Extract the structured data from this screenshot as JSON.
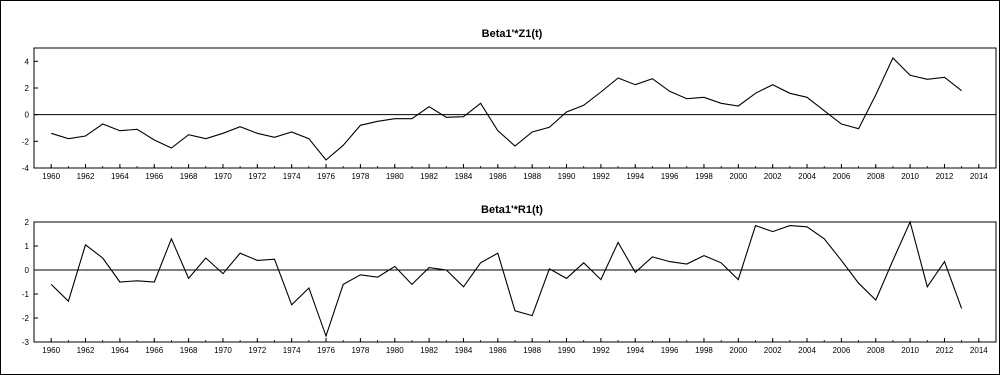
{
  "chart_data": [
    {
      "type": "line",
      "title": "Beta1'*Z1(t)",
      "xlabel": "",
      "ylabel": "",
      "ylim": [
        -4,
        5
      ],
      "yticks": [
        -4,
        -2,
        0,
        2,
        4
      ],
      "xticks": [
        1960,
        1962,
        1964,
        1966,
        1968,
        1970,
        1972,
        1974,
        1976,
        1978,
        1980,
        1982,
        1984,
        1986,
        1988,
        1990,
        1992,
        1994,
        1996,
        1998,
        2000,
        2002,
        2004,
        2006,
        2008,
        2010,
        2012,
        2014
      ],
      "xlim": [
        1959,
        2015
      ],
      "zero_line": true,
      "grid": false,
      "x": [
        1960,
        1961,
        1962,
        1963,
        1964,
        1965,
        1966,
        1967,
        1968,
        1969,
        1970,
        1971,
        1972,
        1973,
        1974,
        1975,
        1976,
        1977,
        1978,
        1979,
        1980,
        1981,
        1982,
        1983,
        1984,
        1985,
        1986,
        1987,
        1988,
        1989,
        1990,
        1991,
        1992,
        1993,
        1994,
        1995,
        1996,
        1997,
        1998,
        1999,
        2000,
        2001,
        2002,
        2003,
        2004,
        2005,
        2006,
        2007,
        2008,
        2009,
        2010,
        2011,
        2012,
        2013
      ],
      "values": [
        -1.4,
        -1.8,
        -1.6,
        -0.7,
        -1.2,
        -1.1,
        -1.9,
        -2.5,
        -1.5,
        -1.8,
        -1.4,
        -0.9,
        -1.4,
        -1.7,
        -1.3,
        -1.8,
        -3.4,
        -2.3,
        -0.8,
        -0.5,
        -0.3,
        -0.3,
        0.6,
        -0.2,
        -0.15,
        0.85,
        -1.2,
        -2.35,
        -1.3,
        -0.95,
        0.2,
        0.7,
        1.7,
        2.75,
        2.25,
        2.7,
        1.75,
        1.2,
        1.3,
        0.85,
        0.65,
        1.6,
        2.25,
        1.6,
        1.3,
        0.3,
        -0.7,
        -1.05,
        1.5,
        4.25,
        2.95,
        2.65,
        2.8,
        1.8
      ]
    },
    {
      "type": "line",
      "title": "Beta1'*R1(t)",
      "xlabel": "",
      "ylabel": "",
      "ylim": [
        -3,
        2
      ],
      "yticks": [
        -3,
        -2,
        -1,
        0,
        1,
        2
      ],
      "xticks": [
        1960,
        1962,
        1964,
        1966,
        1968,
        1970,
        1972,
        1974,
        1976,
        1978,
        1980,
        1982,
        1984,
        1986,
        1988,
        1990,
        1992,
        1994,
        1996,
        1998,
        2000,
        2002,
        2004,
        2006,
        2008,
        2010,
        2012,
        2014
      ],
      "xlim": [
        1959,
        2015
      ],
      "zero_line": true,
      "grid": false,
      "x": [
        1960,
        1961,
        1962,
        1963,
        1964,
        1965,
        1966,
        1967,
        1968,
        1969,
        1970,
        1971,
        1972,
        1973,
        1974,
        1975,
        1976,
        1977,
        1978,
        1979,
        1980,
        1981,
        1982,
        1983,
        1984,
        1985,
        1986,
        1987,
        1988,
        1989,
        1990,
        1991,
        1992,
        1993,
        1994,
        1995,
        1996,
        1997,
        1998,
        1999,
        2000,
        2001,
        2002,
        2003,
        2004,
        2005,
        2006,
        2007,
        2008,
        2009,
        2010,
        2011,
        2012,
        2013
      ],
      "values": [
        -0.6,
        -1.3,
        1.05,
        0.5,
        -0.5,
        -0.45,
        -0.5,
        1.3,
        -0.35,
        0.5,
        -0.15,
        0.7,
        0.4,
        0.45,
        -1.45,
        -0.75,
        -2.75,
        -0.6,
        -0.2,
        -0.3,
        0.15,
        -0.6,
        0.1,
        0.0,
        -0.7,
        0.3,
        0.7,
        -1.7,
        -1.9,
        0.05,
        -0.35,
        0.3,
        -0.4,
        1.15,
        -0.1,
        0.55,
        0.35,
        0.25,
        0.6,
        0.3,
        -0.4,
        1.85,
        1.6,
        1.85,
        1.8,
        1.3,
        0.4,
        -0.55,
        -1.25,
        0.4,
        2.0,
        -0.7,
        0.35,
        -1.6
      ]
    }
  ]
}
